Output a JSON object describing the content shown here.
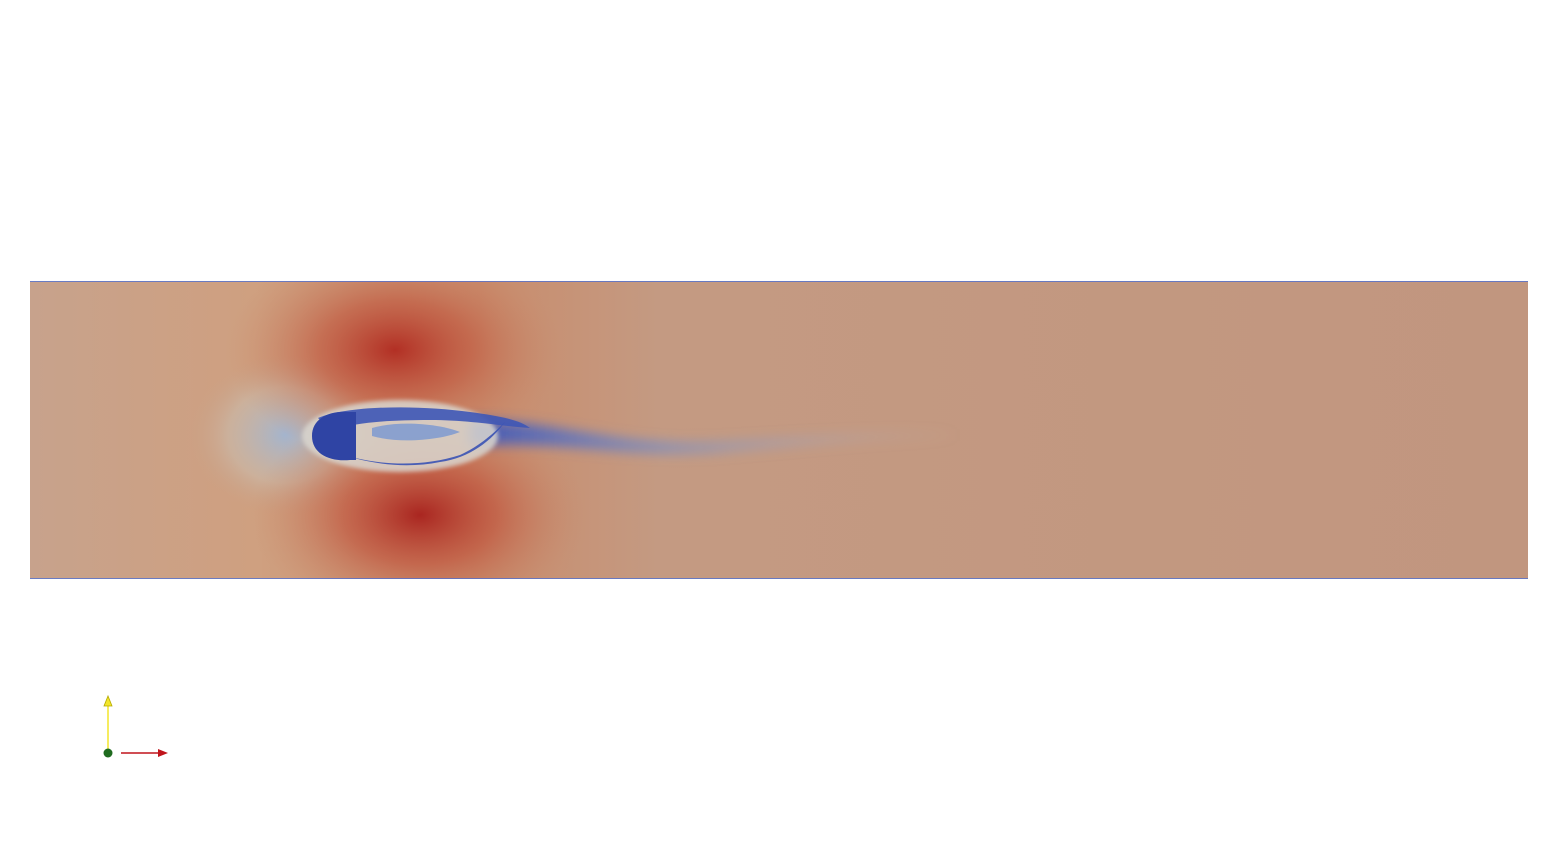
{
  "view": {
    "background": "#ffffff",
    "render_type": "2d-flow-field-pseudocolor",
    "colormap": "cool-to-warm"
  },
  "field": {
    "base_color": "#c1967f",
    "high_color": "#b40426",
    "low_color": "#3b4cc0",
    "boundary_line_color": "#4a6fd6"
  },
  "orientation_axes": {
    "x_axis_color": "#c0141b",
    "y_axis_color": "#f2e62b",
    "origin_color": "#1f6b1f"
  }
}
